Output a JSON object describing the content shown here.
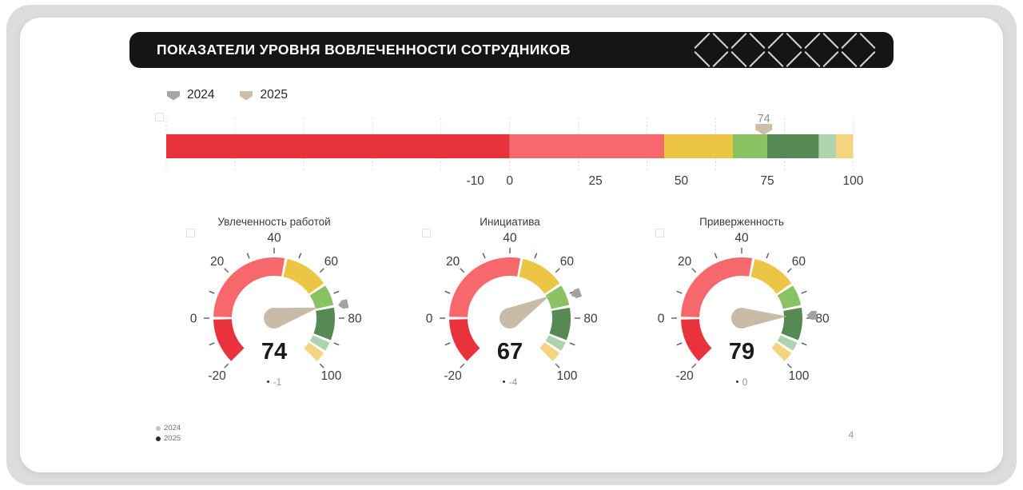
{
  "header": {
    "title": "ПОКАЗАТЕЛИ УРОВНЯ ВОВЛЕЧЕННОСТИ СОТРУДНИКОВ"
  },
  "legend_top": {
    "items": [
      {
        "label": "2024",
        "color": "#a6a6a6"
      },
      {
        "label": "2025",
        "color": "#cbbfa8"
      }
    ]
  },
  "legend_bottom": {
    "items": [
      {
        "label": "2024",
        "color": "#c4c4c4"
      },
      {
        "label": "2025",
        "color": "#2d2d2d"
      }
    ]
  },
  "page_number": "4",
  "colors": {
    "needle": "#c8bca8",
    "marker_2024": "#a2a2a2",
    "tick": "#5a6570",
    "axis_label": "#3c3c3c",
    "gridline": "#cfcfcf",
    "marker_label": "#8f8f8f",
    "pattern_stroke": "#d6d6d6"
  },
  "chart_data": [
    {
      "type": "bullet",
      "title": "",
      "axis": {
        "min": -100,
        "max": 100,
        "tick_labels": [
          -10,
          0,
          25,
          50,
          75,
          100
        ],
        "gridline_step": 20,
        "grid": "dotted"
      },
      "segments": [
        {
          "from": -100,
          "to": 0,
          "color": "#e8333c"
        },
        {
          "from": 0,
          "to": 45,
          "color": "#f7686d"
        },
        {
          "from": 45,
          "to": 65,
          "color": "#edc545"
        },
        {
          "from": 65,
          "to": 75,
          "color": "#8ac263"
        },
        {
          "from": 75,
          "to": 90,
          "color": "#568a52"
        },
        {
          "from": 90,
          "to": 95,
          "color": "#aed3ae"
        },
        {
          "from": 95,
          "to": 100,
          "color": "#f5d481"
        }
      ],
      "marker": {
        "series": "2025",
        "value": 74,
        "label": "74",
        "color": "#cbbfa8"
      }
    },
    {
      "type": "gauge",
      "title": "Увлеченность работой",
      "value": 74,
      "value_label": "74",
      "delta": -1,
      "delta_label": "-1",
      "marker_2024": 75,
      "min": -20,
      "max": 100,
      "angle_span": 270,
      "label_step": 20,
      "tick_step": 10,
      "tick_labels": [
        -20,
        0,
        20,
        40,
        60,
        80,
        100
      ],
      "segments": [
        {
          "from": -20,
          "to": 0,
          "color": "#e8333c"
        },
        {
          "from": 0,
          "to": 45,
          "color": "#f7686d"
        },
        {
          "from": 45,
          "to": 65,
          "color": "#edc545"
        },
        {
          "from": 65,
          "to": 75,
          "color": "#8ac263"
        },
        {
          "from": 75,
          "to": 90,
          "color": "#568a52"
        },
        {
          "from": 90,
          "to": 95,
          "color": "#aed3ae"
        },
        {
          "from": 95,
          "to": 100,
          "color": "#f5d481"
        }
      ]
    },
    {
      "type": "gauge",
      "title": "Инициатива",
      "value": 67,
      "value_label": "67",
      "delta": -4,
      "delta_label": "-4",
      "marker_2024": 71,
      "min": -20,
      "max": 100,
      "angle_span": 270,
      "label_step": 20,
      "tick_step": 10,
      "tick_labels": [
        -20,
        0,
        20,
        40,
        60,
        80,
        100
      ],
      "segments": [
        {
          "from": -20,
          "to": 0,
          "color": "#e8333c"
        },
        {
          "from": 0,
          "to": 45,
          "color": "#f7686d"
        },
        {
          "from": 45,
          "to": 65,
          "color": "#edc545"
        },
        {
          "from": 65,
          "to": 75,
          "color": "#8ac263"
        },
        {
          "from": 75,
          "to": 90,
          "color": "#568a52"
        },
        {
          "from": 90,
          "to": 95,
          "color": "#aed3ae"
        },
        {
          "from": 95,
          "to": 100,
          "color": "#f5d481"
        }
      ]
    },
    {
      "type": "gauge",
      "title": "Приверженность",
      "value": 79,
      "value_label": "79",
      "delta": 0,
      "delta_label": "0",
      "marker_2024": 79,
      "min": -20,
      "max": 100,
      "angle_span": 270,
      "label_step": 20,
      "tick_step": 10,
      "tick_labels": [
        -20,
        0,
        20,
        40,
        60,
        80,
        100
      ],
      "segments": [
        {
          "from": -20,
          "to": 0,
          "color": "#e8333c"
        },
        {
          "from": 0,
          "to": 45,
          "color": "#f7686d"
        },
        {
          "from": 45,
          "to": 65,
          "color": "#edc545"
        },
        {
          "from": 65,
          "to": 75,
          "color": "#8ac263"
        },
        {
          "from": 75,
          "to": 90,
          "color": "#568a52"
        },
        {
          "from": 90,
          "to": 95,
          "color": "#aed3ae"
        },
        {
          "from": 95,
          "to": 100,
          "color": "#f5d481"
        }
      ]
    }
  ]
}
